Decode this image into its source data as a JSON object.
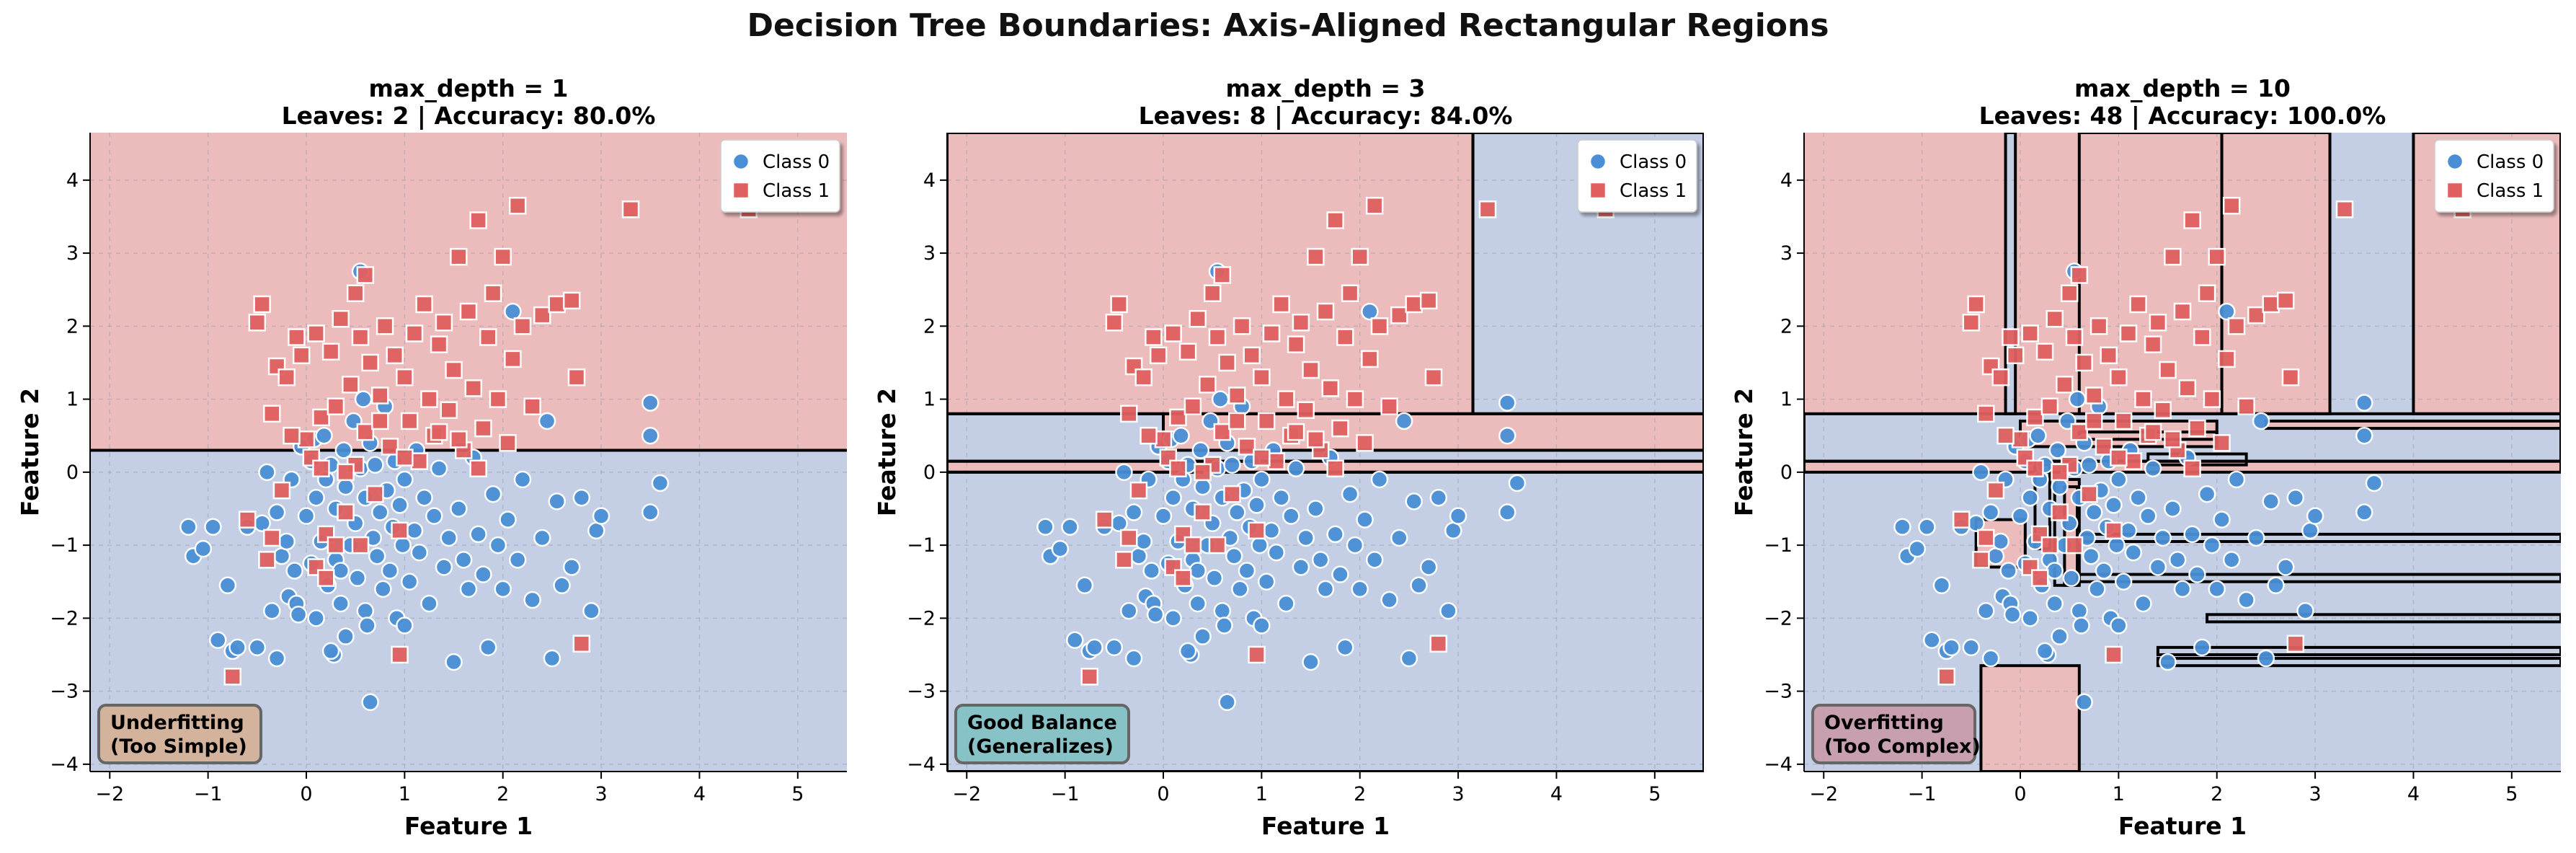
{
  "figure": {
    "title": "Decision Tree Boundaries: Axis-Aligned Rectangular Regions"
  },
  "colors": {
    "class0_region": "#c4cfe5",
    "class1_region": "#ecbcbd",
    "class0_marker": "#4a8fd6",
    "class1_marker": "#e06060",
    "boundary": "#000000"
  },
  "chart_data": [
    {
      "type": "scatter",
      "title": "max_depth = 1\nLeaves: 2 | Accuracy: 80.0%",
      "title_line1": "max_depth = 1",
      "title_line2": "Leaves: 2 | Accuracy: 80.0%",
      "xlabel": "Feature 1",
      "ylabel": "Feature 2",
      "xlim": [
        -2.2,
        5.5
      ],
      "ylim": [
        -4.1,
        4.65
      ],
      "xticks": [
        -2,
        -1,
        0,
        1,
        2,
        3,
        4,
        5
      ],
      "yticks": [
        -4,
        -3,
        -2,
        -1,
        0,
        1,
        2,
        3,
        4
      ],
      "grid": true,
      "legend": {
        "placement": "top-right",
        "entries": [
          "Class 0",
          "Class 1"
        ]
      },
      "annotation": {
        "text": "Underfitting\n(Too Simple)",
        "line1": "Underfitting",
        "line2": "(Too Simple)",
        "color": "#d7ae8f"
      },
      "regions": [
        {
          "x": [
            -2.2,
            5.5
          ],
          "y": [
            0.3,
            4.65
          ],
          "class": 1
        },
        {
          "x": [
            -2.2,
            5.5
          ],
          "y": [
            -4.1,
            0.3
          ],
          "class": 0
        }
      ]
    },
    {
      "type": "scatter",
      "title": "max_depth = 3\nLeaves: 8 | Accuracy: 84.0%",
      "title_line1": "max_depth = 3",
      "title_line2": "Leaves: 8 | Accuracy: 84.0%",
      "xlabel": "Feature 1",
      "ylabel": "Feature 2",
      "xlim": [
        -2.2,
        5.5
      ],
      "ylim": [
        -4.1,
        4.65
      ],
      "xticks": [
        -2,
        -1,
        0,
        1,
        2,
        3,
        4,
        5
      ],
      "yticks": [
        -4,
        -3,
        -2,
        -1,
        0,
        1,
        2,
        3,
        4
      ],
      "grid": true,
      "legend": {
        "placement": "top-right",
        "entries": [
          "Class 0",
          "Class 1"
        ]
      },
      "annotation": {
        "text": "Good Balance\n(Generalizes)",
        "line1": "Good Balance",
        "line2": "(Generalizes)",
        "color": "#7dbfc2"
      },
      "regions": [
        {
          "x": [
            -2.2,
            3.15
          ],
          "y": [
            0.8,
            4.65
          ],
          "class": 1
        },
        {
          "x": [
            3.15,
            5.5
          ],
          "y": [
            0.8,
            4.65
          ],
          "class": 0
        },
        {
          "x": [
            -2.2,
            0.0
          ],
          "y": [
            0.15,
            0.8
          ],
          "class": 0
        },
        {
          "x": [
            0.0,
            5.5
          ],
          "y": [
            0.3,
            0.8
          ],
          "class": 1
        },
        {
          "x": [
            0.0,
            5.5
          ],
          "y": [
            0.15,
            0.3
          ],
          "class": 0
        },
        {
          "x": [
            -2.2,
            5.5
          ],
          "y": [
            0.0,
            0.15
          ],
          "class": 1
        },
        {
          "x": [
            -2.2,
            5.5
          ],
          "y": [
            -4.1,
            0.0
          ],
          "class": 0
        }
      ]
    },
    {
      "type": "scatter",
      "title": "max_depth = 10\nLeaves: 48 | Accuracy: 100.0%",
      "title_line1": "max_depth = 10",
      "title_line2": "Leaves: 48 | Accuracy: 100.0%",
      "xlabel": "Feature 1",
      "ylabel": "Feature 2",
      "xlim": [
        -2.2,
        5.5
      ],
      "ylim": [
        -4.1,
        4.65
      ],
      "xticks": [
        -2,
        -1,
        0,
        1,
        2,
        3,
        4,
        5
      ],
      "yticks": [
        -4,
        -3,
        -2,
        -1,
        0,
        1,
        2,
        3,
        4
      ],
      "grid": true,
      "legend": {
        "placement": "top-right",
        "entries": [
          "Class 0",
          "Class 1"
        ]
      },
      "annotation": {
        "text": "Overfitting\n(Too Complex)",
        "line1": "Overfitting",
        "line2": "(Too Complex)",
        "color": "#c897a6"
      },
      "regions": [
        {
          "x": [
            -2.2,
            -0.15
          ],
          "y": [
            0.8,
            4.65
          ],
          "class": 1
        },
        {
          "x": [
            -0.15,
            -0.05
          ],
          "y": [
            0.8,
            4.65
          ],
          "class": 0
        },
        {
          "x": [
            -0.05,
            0.6
          ],
          "y": [
            0.8,
            4.65
          ],
          "class": 1
        },
        {
          "x": [
            0.6,
            2.05
          ],
          "y": [
            0.8,
            4.65
          ],
          "class": 1
        },
        {
          "x": [
            2.05,
            3.15
          ],
          "y": [
            0.8,
            4.65
          ],
          "class": 1
        },
        {
          "x": [
            3.15,
            4.0
          ],
          "y": [
            0.8,
            4.65
          ],
          "class": 0
        },
        {
          "x": [
            4.0,
            5.5
          ],
          "y": [
            0.8,
            4.65
          ],
          "class": 1
        },
        {
          "x": [
            -2.2,
            5.5
          ],
          "y": [
            0.15,
            0.8
          ],
          "class": 0
        },
        {
          "x": [
            0.0,
            2.0
          ],
          "y": [
            0.35,
            0.7
          ],
          "class": 1
        },
        {
          "x": [
            2.5,
            5.5
          ],
          "y": [
            0.6,
            0.7
          ],
          "class": 1
        },
        {
          "x": [
            -2.2,
            5.5
          ],
          "y": [
            0.0,
            0.15
          ],
          "class": 1
        },
        {
          "x": [
            -2.2,
            5.5
          ],
          "y": [
            -4.1,
            0.0
          ],
          "class": 0
        },
        {
          "x": [
            -0.45,
            0.05
          ],
          "y": [
            -1.3,
            -0.65
          ],
          "class": 1
        },
        {
          "x": [
            0.45,
            0.58
          ],
          "y": [
            -1.55,
            -0.1
          ],
          "class": 1
        },
        {
          "x": [
            -0.4,
            0.6
          ],
          "y": [
            -4.1,
            -2.65
          ],
          "class": 1
        }
      ],
      "boundary_boxes": [
        {
          "x": [
            -0.15,
            -0.05
          ],
          "y": [
            0.8,
            4.65
          ]
        },
        {
          "x": [
            0.6,
            2.05
          ],
          "y": [
            0.8,
            4.65
          ]
        },
        {
          "x": [
            2.05,
            3.15
          ],
          "y": [
            0.8,
            4.65
          ]
        },
        {
          "x": [
            4.0,
            5.5
          ],
          "y": [
            0.8,
            4.65
          ]
        },
        {
          "x": [
            -2.2,
            5.5
          ],
          "y": [
            0.15,
            0.8
          ]
        },
        {
          "x": [
            0.0,
            2.0
          ],
          "y": [
            0.35,
            0.7
          ]
        },
        {
          "x": [
            0.6,
            2.0
          ],
          "y": [
            0.45,
            0.55
          ]
        },
        {
          "x": [
            2.5,
            5.5
          ],
          "y": [
            0.6,
            0.7
          ]
        },
        {
          "x": [
            -2.2,
            5.5
          ],
          "y": [
            0.0,
            0.15
          ]
        },
        {
          "x": [
            1.3,
            2.3
          ],
          "y": [
            0.1,
            0.25
          ]
        },
        {
          "x": [
            -0.45,
            0.05
          ],
          "y": [
            -1.3,
            -0.65
          ]
        },
        {
          "x": [
            0.15,
            0.3
          ],
          "y": [
            -1.05,
            0.1
          ]
        },
        {
          "x": [
            0.35,
            0.6
          ],
          "y": [
            -1.55,
            -0.1
          ]
        },
        {
          "x": [
            0.45,
            0.58
          ],
          "y": [
            -1.55,
            -0.2
          ]
        },
        {
          "x": [
            0.6,
            5.5
          ],
          "y": [
            -0.85,
            -0.95
          ]
        },
        {
          "x": [
            0.6,
            5.5
          ],
          "y": [
            -1.4,
            -1.5
          ]
        },
        {
          "x": [
            1.9,
            5.5
          ],
          "y": [
            -1.95,
            -2.05
          ]
        },
        {
          "x": [
            1.4,
            5.5
          ],
          "y": [
            -2.4,
            -2.5
          ]
        },
        {
          "x": [
            1.4,
            5.5
          ],
          "y": [
            -2.55,
            -2.65
          ]
        },
        {
          "x": [
            -0.4,
            0.6
          ],
          "y": [
            -4.1,
            -2.65
          ]
        }
      ]
    }
  ],
  "points": {
    "class0": [
      [
        -1.2,
        -0.75
      ],
      [
        -1.15,
        -1.15
      ],
      [
        -1.05,
        -1.05
      ],
      [
        -0.95,
        -0.75
      ],
      [
        -0.9,
        -2.3
      ],
      [
        -0.8,
        -1.55
      ],
      [
        -0.75,
        -2.45
      ],
      [
        -0.7,
        -2.4
      ],
      [
        -0.6,
        -0.75
      ],
      [
        -0.5,
        -2.4
      ],
      [
        -0.45,
        -0.7
      ],
      [
        -0.4,
        0.0
      ],
      [
        -0.35,
        -1.9
      ],
      [
        -0.3,
        -0.55
      ],
      [
        -0.25,
        -1.15
      ],
      [
        -0.2,
        -0.95
      ],
      [
        -0.18,
        -1.7
      ],
      [
        -0.15,
        -0.1
      ],
      [
        -0.12,
        -1.35
      ],
      [
        -0.1,
        -1.8
      ],
      [
        -0.08,
        -1.95
      ],
      [
        -0.05,
        0.35
      ],
      [
        0.0,
        -0.6
      ],
      [
        0.05,
        0.15
      ],
      [
        0.05,
        -1.25
      ],
      [
        0.08,
        0.45
      ],
      [
        0.1,
        -0.35
      ],
      [
        0.1,
        -2.0
      ],
      [
        0.15,
        -0.95
      ],
      [
        0.18,
        0.5
      ],
      [
        0.2,
        -0.1
      ],
      [
        0.22,
        -1.55
      ],
      [
        0.25,
        0.1
      ],
      [
        0.28,
        -2.5
      ],
      [
        0.3,
        -1.2
      ],
      [
        0.3,
        -0.5
      ],
      [
        0.35,
        -1.8
      ],
      [
        0.38,
        0.3
      ],
      [
        0.4,
        -0.2
      ],
      [
        0.4,
        -2.25
      ],
      [
        0.45,
        -1.0
      ],
      [
        0.48,
        0.7
      ],
      [
        0.5,
        -0.7
      ],
      [
        0.52,
        -1.45
      ],
      [
        0.55,
        0.05
      ],
      [
        0.58,
        1.0
      ],
      [
        0.6,
        -0.35
      ],
      [
        0.6,
        -1.9
      ],
      [
        0.62,
        -2.1
      ],
      [
        0.65,
        0.4
      ],
      [
        0.68,
        -0.9
      ],
      [
        0.7,
        0.1
      ],
      [
        0.72,
        -1.15
      ],
      [
        0.75,
        -0.55
      ],
      [
        0.78,
        -1.6
      ],
      [
        0.8,
        0.9
      ],
      [
        0.82,
        -0.25
      ],
      [
        0.85,
        -1.35
      ],
      [
        0.88,
        -0.75
      ],
      [
        0.9,
        0.15
      ],
      [
        0.92,
        -2.0
      ],
      [
        0.95,
        -0.45
      ],
      [
        0.98,
        -1.0
      ],
      [
        1.0,
        -0.1
      ],
      [
        1.05,
        -1.5
      ],
      [
        1.1,
        -0.8
      ],
      [
        1.12,
        0.3
      ],
      [
        1.15,
        -1.1
      ],
      [
        1.2,
        -0.35
      ],
      [
        1.25,
        -1.8
      ],
      [
        1.3,
        -0.6
      ],
      [
        1.35,
        0.05
      ],
      [
        1.4,
        -1.3
      ],
      [
        1.45,
        -0.9
      ],
      [
        1.5,
        -2.6
      ],
      [
        1.55,
        -0.5
      ],
      [
        1.6,
        -1.2
      ],
      [
        1.65,
        -1.6
      ],
      [
        1.7,
        0.2
      ],
      [
        1.75,
        -0.85
      ],
      [
        1.8,
        -1.4
      ],
      [
        1.85,
        -2.4
      ],
      [
        1.9,
        -0.3
      ],
      [
        1.95,
        -1.0
      ],
      [
        2.0,
        -1.6
      ],
      [
        2.05,
        -0.65
      ],
      [
        2.1,
        2.2
      ],
      [
        2.15,
        -1.2
      ],
      [
        2.2,
        -0.1
      ],
      [
        2.3,
        -1.75
      ],
      [
        2.4,
        -0.9
      ],
      [
        2.45,
        0.7
      ],
      [
        2.5,
        -2.55
      ],
      [
        2.55,
        -0.4
      ],
      [
        2.6,
        -1.55
      ],
      [
        2.7,
        -1.3
      ],
      [
        2.8,
        -0.35
      ],
      [
        2.9,
        -1.9
      ],
      [
        2.95,
        -0.8
      ],
      [
        3.0,
        -0.6
      ],
      [
        3.5,
        0.95
      ],
      [
        3.5,
        0.5
      ],
      [
        3.5,
        -0.55
      ],
      [
        3.6,
        -0.15
      ],
      [
        0.55,
        2.75
      ],
      [
        -0.3,
        -2.55
      ],
      [
        0.35,
        -1.35
      ],
      [
        1.0,
        -2.1
      ],
      [
        0.25,
        -2.45
      ],
      [
        0.65,
        -3.15
      ]
    ],
    "class1": [
      [
        -0.5,
        2.05
      ],
      [
        -0.45,
        2.3
      ],
      [
        -0.35,
        0.8
      ],
      [
        -0.3,
        1.45
      ],
      [
        -0.25,
        -0.25
      ],
      [
        -0.2,
        1.3
      ],
      [
        -0.1,
        1.85
      ],
      [
        -0.05,
        1.6
      ],
      [
        0.0,
        0.45
      ],
      [
        0.05,
        0.2
      ],
      [
        0.1,
        1.9
      ],
      [
        0.15,
        0.75
      ],
      [
        0.2,
        -0.85
      ],
      [
        0.25,
        1.65
      ],
      [
        0.3,
        0.9
      ],
      [
        0.35,
        2.1
      ],
      [
        0.4,
        -0.55
      ],
      [
        0.45,
        1.2
      ],
      [
        0.5,
        0.1
      ],
      [
        0.55,
        1.85
      ],
      [
        0.6,
        0.55
      ],
      [
        0.65,
        1.5
      ],
      [
        0.7,
        -0.3
      ],
      [
        0.75,
        1.05
      ],
      [
        0.8,
        2.0
      ],
      [
        0.85,
        0.35
      ],
      [
        0.9,
        1.6
      ],
      [
        0.95,
        -0.8
      ],
      [
        1.0,
        1.3
      ],
      [
        1.05,
        0.7
      ],
      [
        1.1,
        1.9
      ],
      [
        1.15,
        0.15
      ],
      [
        1.2,
        2.3
      ],
      [
        1.25,
        1.0
      ],
      [
        1.3,
        0.5
      ],
      [
        1.35,
        1.75
      ],
      [
        1.4,
        2.05
      ],
      [
        1.45,
        0.85
      ],
      [
        1.5,
        1.4
      ],
      [
        1.55,
        2.95
      ],
      [
        1.6,
        0.3
      ],
      [
        1.65,
        2.2
      ],
      [
        1.7,
        1.15
      ],
      [
        1.75,
        3.45
      ],
      [
        1.8,
        0.6
      ],
      [
        1.85,
        1.85
      ],
      [
        1.9,
        2.45
      ],
      [
        1.95,
        1.0
      ],
      [
        2.0,
        2.95
      ],
      [
        2.05,
        0.4
      ],
      [
        2.1,
        1.55
      ],
      [
        2.15,
        3.65
      ],
      [
        2.2,
        2.0
      ],
      [
        2.3,
        0.9
      ],
      [
        2.4,
        2.15
      ],
      [
        2.55,
        2.3
      ],
      [
        2.7,
        2.35
      ],
      [
        2.75,
        1.3
      ],
      [
        3.3,
        3.6
      ],
      [
        4.5,
        3.6
      ],
      [
        -0.75,
        -2.8
      ],
      [
        -0.6,
        -0.65
      ],
      [
        -0.4,
        -1.2
      ],
      [
        -0.35,
        -0.9
      ],
      [
        0.1,
        -1.3
      ],
      [
        0.2,
        -1.45
      ],
      [
        0.55,
        -1.0
      ],
      [
        0.6,
        2.7
      ],
      [
        0.95,
        -2.5
      ],
      [
        2.8,
        -2.35
      ],
      [
        0.4,
        0.0
      ],
      [
        -0.15,
        0.5
      ],
      [
        0.3,
        -1.0
      ],
      [
        0.75,
        0.7
      ],
      [
        1.0,
        0.2
      ],
      [
        1.35,
        0.55
      ],
      [
        1.55,
        0.45
      ],
      [
        1.75,
        0.05
      ],
      [
        0.15,
        0.05
      ],
      [
        0.5,
        2.45
      ]
    ]
  }
}
